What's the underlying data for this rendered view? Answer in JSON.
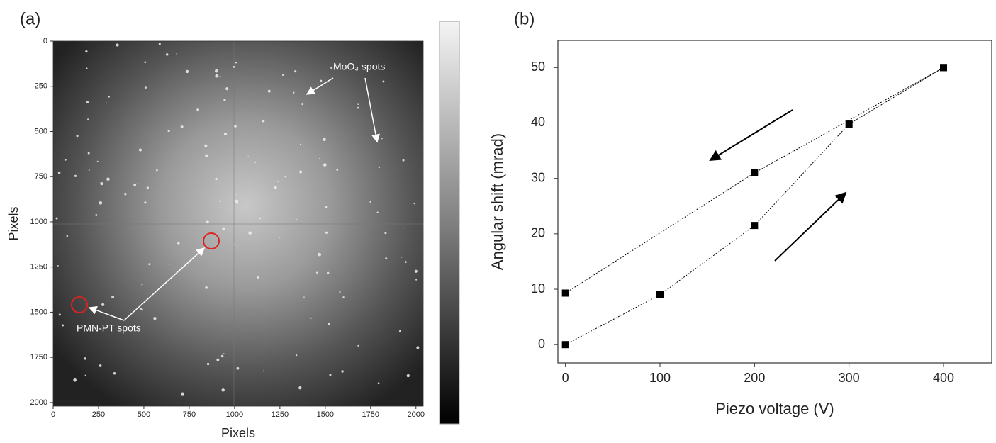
{
  "chart_data": [
    {
      "type": "image",
      "panel_label": "(a)",
      "x_label": "Pixels",
      "y_label": "Pixels",
      "xlim": [
        0,
        2040
      ],
      "ylim": [
        0,
        2020
      ],
      "y_inverted": true,
      "xticks": [
        0,
        250,
        500,
        750,
        1000,
        1250,
        1500,
        1750,
        2000
      ],
      "yticks": [
        0,
        250,
        500,
        750,
        1000,
        1250,
        1500,
        1750,
        2000
      ],
      "annotations": [
        "MoO₃ spots",
        "PMN-PT spots"
      ],
      "colorbar": true
    },
    {
      "type": "line",
      "panel_label": "(b)",
      "x_label": "Piezo voltage (V)",
      "y_label": "Angular shift (mrad)",
      "xlim": [
        -8,
        451
      ],
      "ylim": [
        -3.3,
        54.9
      ],
      "xticks": [
        0,
        100,
        200,
        300,
        400
      ],
      "yticks": [
        0,
        10,
        20,
        30,
        40,
        50
      ],
      "series": [
        {
          "color": "#000000",
          "x": [
            0,
            100,
            200,
            300,
            400
          ],
          "values": [
            0,
            9,
            21.5,
            39.8,
            50
          ]
        },
        {
          "color": "#000000",
          "x": [
            400,
            200,
            0
          ],
          "values": [
            50,
            31,
            9.3
          ]
        }
      ]
    }
  ]
}
